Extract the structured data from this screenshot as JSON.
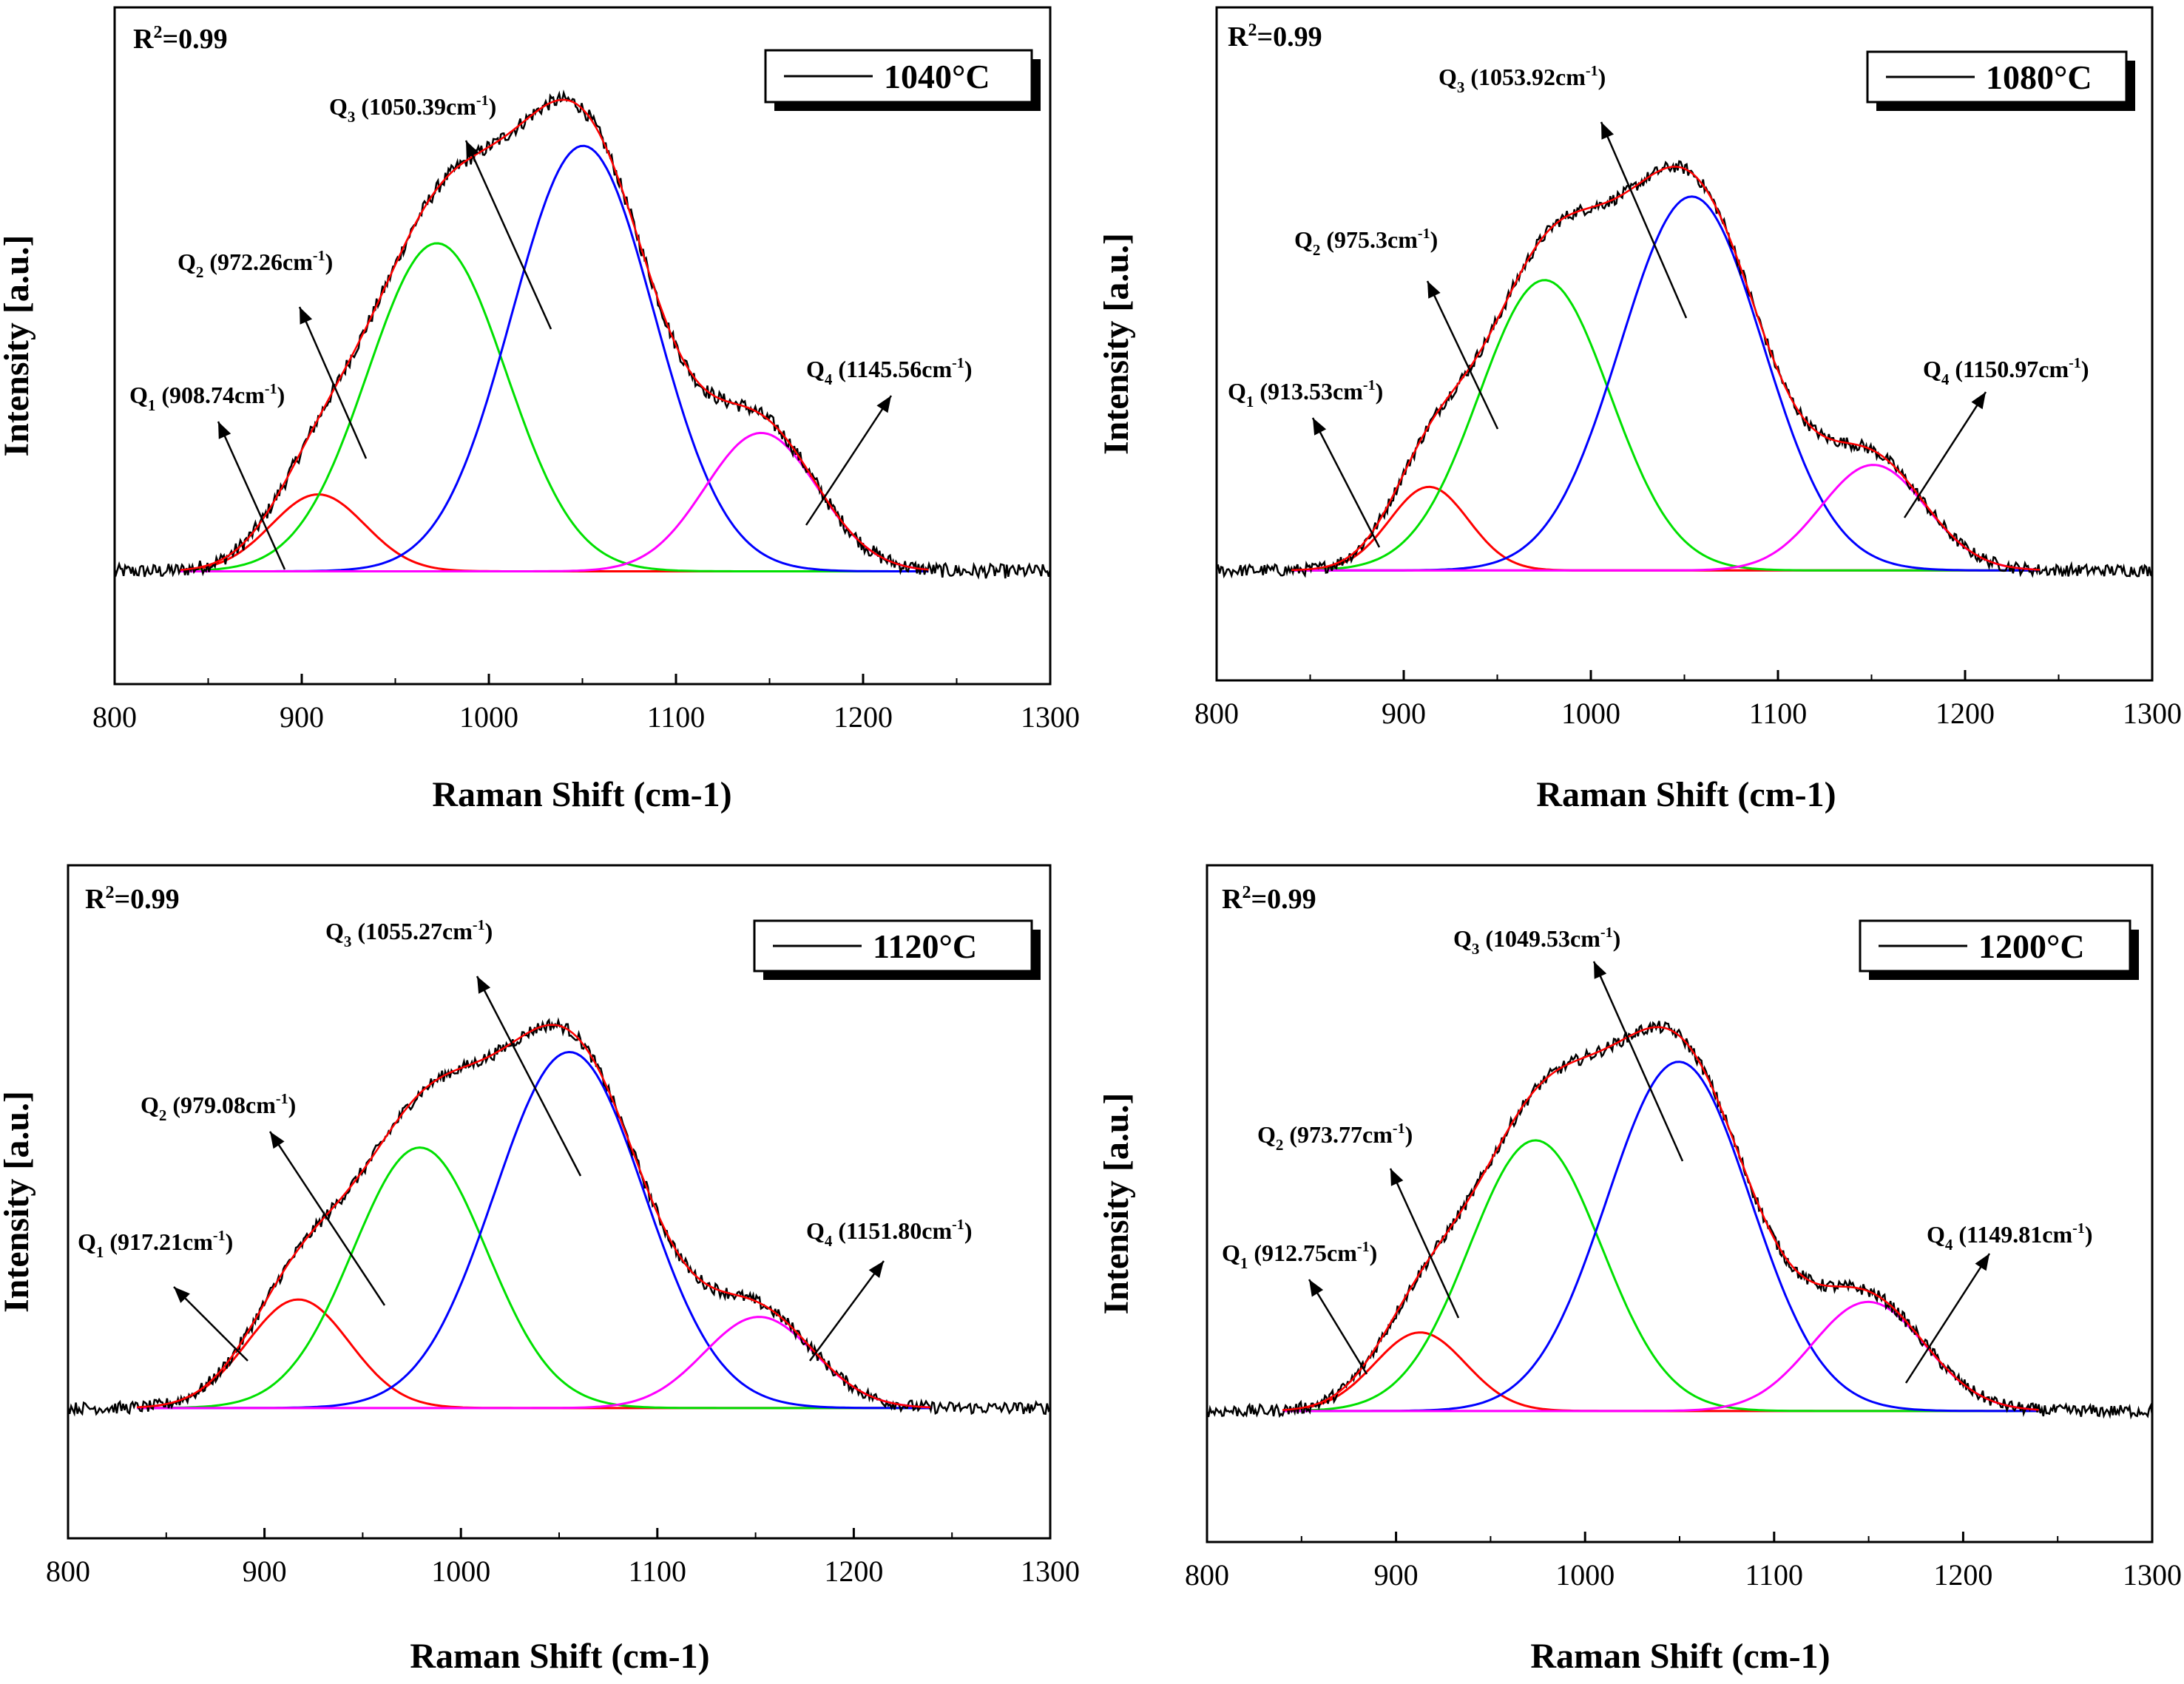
{
  "chart_data": [
    {
      "type": "line",
      "legend": "1040°C",
      "r2": "R",
      "r2_sup": "2",
      "r2_value": "=0.99",
      "xlabel": "Raman Shift (cm-1)",
      "ylabel": "Intensity [a.u.]",
      "xlim": [
        800,
        1300
      ],
      "ylim": [
        -0.22,
        1.1
      ],
      "x_ticks": [
        "800",
        "900",
        "1000",
        "1100",
        "1200",
        "1300"
      ],
      "fit_range": [
        835,
        1235
      ],
      "peaks": [
        {
          "q": "Q",
          "sub": "1",
          "value": " (908.74cm",
          "sup": "-1",
          "close": ")",
          "center": 908.74,
          "amplitude": 0.15,
          "sigma": 25,
          "color": "#ff0000"
        },
        {
          "q": "Q",
          "sub": "2",
          "value": " (972.26cm",
          "sup": "-1",
          "close": ")",
          "center": 972.26,
          "amplitude": 0.64,
          "sigma": 37,
          "color": "#00e000"
        },
        {
          "q": "Q",
          "sub": "3",
          "value": " (1050.39cm",
          "sup": "-1",
          "close": ")",
          "center": 1050.39,
          "amplitude": 0.83,
          "sigma": 38,
          "color": "#0000ff"
        },
        {
          "q": "Q",
          "sub": "4",
          "value": " (1145.56cm",
          "sup": "-1",
          "close": ")",
          "center": 1145.56,
          "amplitude": 0.27,
          "sigma": 30,
          "color": "#ff00ff"
        }
      ]
    },
    {
      "type": "line",
      "legend": "1080°C",
      "r2": "R",
      "r2_sup": "2",
      "r2_value": "=0.99",
      "xlabel": "Raman Shift (cm-1)",
      "ylabel": "Intensity [a.u.]",
      "xlim": [
        800,
        1300
      ],
      "ylim": [
        -0.25,
        1.28
      ],
      "x_ticks": [
        "800",
        "900",
        "1000",
        "1100",
        "1200",
        "1300"
      ],
      "fit_range": [
        840,
        1240
      ],
      "peaks": [
        {
          "q": "Q",
          "sub": "1",
          "value": " (913.53cm",
          "sup": "-1",
          "close": ")",
          "center": 913.53,
          "amplitude": 0.19,
          "sigma": 21,
          "color": "#ff0000"
        },
        {
          "q": "Q",
          "sub": "2",
          "value": " (975.3cm",
          "sup": "-1",
          "close": ")",
          "center": 975.3,
          "amplitude": 0.66,
          "sigma": 35,
          "color": "#00e000"
        },
        {
          "q": "Q",
          "sub": "3",
          "value": " (1053.92cm",
          "sup": "-1",
          "close": ")",
          "center": 1053.92,
          "amplitude": 0.85,
          "sigma": 38,
          "color": "#0000ff"
        },
        {
          "q": "Q",
          "sub": "4",
          "value": " (1150.97cm",
          "sup": "-1",
          "close": ")",
          "center": 1150.97,
          "amplitude": 0.24,
          "sigma": 28,
          "color": "#ff00ff"
        }
      ]
    },
    {
      "type": "line",
      "legend": "1120°C",
      "r2": "R",
      "r2_sup": "2",
      "r2_value": "=0.99",
      "xlabel": "Raman Shift (cm-1)",
      "ylabel": "Intensity [a.u.]",
      "xlim": [
        800,
        1300
      ],
      "ylim": [
        -0.3,
        1.25
      ],
      "x_ticks": [
        "800",
        "900",
        "1000",
        "1100",
        "1200",
        "1300"
      ],
      "fit_range": [
        835,
        1240
      ],
      "peaks": [
        {
          "q": "Q",
          "sub": "1",
          "value": " (917.21cm",
          "sup": "-1",
          "close": ")",
          "center": 917.21,
          "amplitude": 0.25,
          "sigma": 26,
          "color": "#ff0000"
        },
        {
          "q": "Q",
          "sub": "2",
          "value": " (979.08cm",
          "sup": "-1",
          "close": ")",
          "center": 979.08,
          "amplitude": 0.6,
          "sigma": 34,
          "color": "#00e000"
        },
        {
          "q": "Q",
          "sub": "3",
          "value": " (1055.27cm",
          "sup": "-1",
          "close": ")",
          "center": 1055.27,
          "amplitude": 0.82,
          "sigma": 38,
          "color": "#0000ff"
        },
        {
          "q": "Q",
          "sub": "4",
          "value": " (1151.80cm",
          "sup": "-1",
          "close": ")",
          "center": 1151.8,
          "amplitude": 0.21,
          "sigma": 28,
          "color": "#ff00ff"
        }
      ]
    },
    {
      "type": "line",
      "legend": "1200°C",
      "r2": "R",
      "r2_sup": "2",
      "r2_value": "=0.99",
      "xlabel": "Raman Shift (cm-1)",
      "ylabel": "Intensity [a.u.]",
      "xlim": [
        800,
        1300
      ],
      "ylim": [
        -0.3,
        1.25
      ],
      "x_ticks": [
        "800",
        "900",
        "1000",
        "1100",
        "1200",
        "1300"
      ],
      "fit_range": [
        840,
        1240
      ],
      "peaks": [
        {
          "q": "Q",
          "sub": "1",
          "value": " (912.75cm",
          "sup": "-1",
          "close": ")",
          "center": 912.75,
          "amplitude": 0.18,
          "sigma": 24,
          "color": "#ff0000"
        },
        {
          "q": "Q",
          "sub": "2",
          "value": " (973.77cm",
          "sup": "-1",
          "close": ")",
          "center": 973.77,
          "amplitude": 0.62,
          "sigma": 35,
          "color": "#00e000"
        },
        {
          "q": "Q",
          "sub": "3",
          "value": " (1049.53cm",
          "sup": "-1",
          "close": ")",
          "center": 1049.53,
          "amplitude": 0.8,
          "sigma": 38,
          "color": "#0000ff"
        },
        {
          "q": "Q",
          "sub": "4",
          "value": " (1149.81cm",
          "sup": "-1",
          "close": ")",
          "center": 1149.81,
          "amplitude": 0.25,
          "sigma": 30,
          "color": "#ff00ff"
        }
      ]
    }
  ]
}
